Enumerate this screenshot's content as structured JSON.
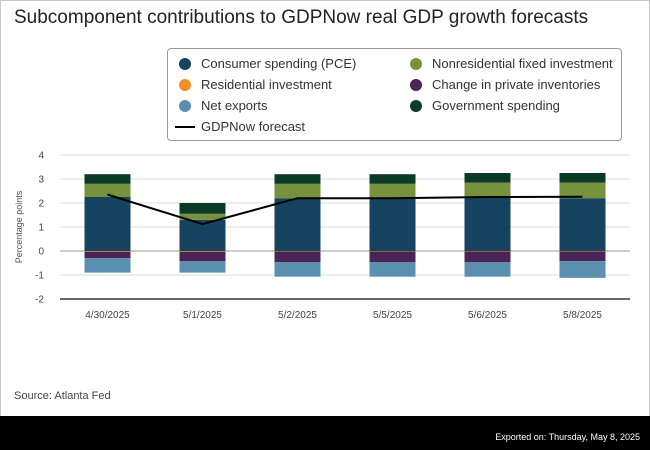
{
  "title": "Subcomponent contributions to GDPNow real GDP growth forecasts",
  "legend": [
    {
      "label": "Consumer spending (PCE)",
      "color": "#154360",
      "shape": "dot"
    },
    {
      "label": "Nonresidential fixed investment",
      "color": "#76923c",
      "shape": "dot"
    },
    {
      "label": "Residential investment",
      "color": "#f28e2b",
      "shape": "dot"
    },
    {
      "label": "Change in private inventories",
      "color": "#4a2456",
      "shape": "dot"
    },
    {
      "label": "Net exports",
      "color": "#5a8fb0",
      "shape": "dot"
    },
    {
      "label": "Government spending",
      "color": "#0b3b26",
      "shape": "dot"
    },
    {
      "label": "GDPNow forecast",
      "color": "#000000",
      "shape": "line"
    }
  ],
  "source": "Source: Atlanta Fed",
  "exported": "Exported on: Thursday, May 8, 2025",
  "chart_data": {
    "type": "bar",
    "stacked": true,
    "title": "Subcomponent contributions to GDPNow real GDP growth forecasts",
    "ylabel": "Percentage points",
    "xlabel": "",
    "ylim": [
      -2,
      4
    ],
    "yticks": [
      4,
      3,
      2,
      1,
      0,
      -1,
      -2
    ],
    "categories": [
      "4/30/2025",
      "5/1/2025",
      "5/2/2025",
      "5/5/2025",
      "5/6/2025",
      "5/8/2025"
    ],
    "series": [
      {
        "name": "Consumer spending (PCE)",
        "color": "#154360",
        "values": [
          2.25,
          1.3,
          2.2,
          2.2,
          2.25,
          2.2
        ]
      },
      {
        "name": "Nonresidential fixed investment",
        "color": "#76923c",
        "values": [
          0.55,
          0.25,
          0.6,
          0.6,
          0.6,
          0.65
        ]
      },
      {
        "name": "Government spending",
        "color": "#0b3b26",
        "values": [
          0.4,
          0.45,
          0.4,
          0.4,
          0.4,
          0.4
        ]
      },
      {
        "name": "Residential investment",
        "color": "#f28e2b",
        "values": [
          -0.03,
          -0.03,
          -0.02,
          -0.02,
          -0.02,
          -0.02
        ]
      },
      {
        "name": "Change in private inventories",
        "color": "#4a2456",
        "values": [
          -0.27,
          -0.4,
          -0.45,
          -0.45,
          -0.45,
          -0.4
        ]
      },
      {
        "name": "Net exports",
        "color": "#5a8fb0",
        "values": [
          -0.6,
          -0.47,
          -0.6,
          -0.6,
          -0.6,
          -0.7
        ]
      }
    ],
    "line": {
      "name": "GDPNow forecast",
      "color": "#000000",
      "values": [
        2.35,
        1.12,
        2.2,
        2.2,
        2.25,
        2.26
      ]
    },
    "grid": true
  }
}
